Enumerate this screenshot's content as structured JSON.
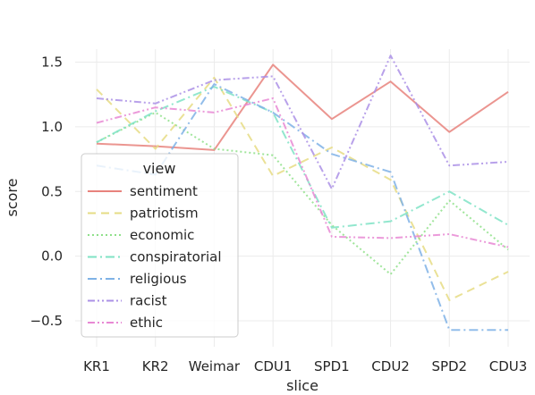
{
  "chart_data": {
    "type": "line",
    "xlabel": "slice",
    "ylabel": "score",
    "categories": [
      "KR1",
      "KR2",
      "Weimar",
      "CDU1",
      "SPD1",
      "CDU2",
      "SPD2",
      "CDU3"
    ],
    "ylim": [
      -0.7,
      1.6
    ],
    "yticks": [
      -0.5,
      0.0,
      0.5,
      1.0,
      1.5
    ],
    "ytick_labels": [
      "−0.5",
      "0.0",
      "0.5",
      "1.0",
      "1.5"
    ],
    "grid": true,
    "legend": {
      "title": "view",
      "placement": "lower-left"
    },
    "series": [
      {
        "name": "sentiment",
        "color": "#e8827d",
        "dash": "solid",
        "values": [
          0.87,
          0.85,
          0.82,
          1.48,
          1.06,
          1.35,
          0.96,
          1.27
        ]
      },
      {
        "name": "patriotism",
        "color": "#e6dc84",
        "dash": "dashed",
        "values": [
          1.29,
          0.83,
          1.38,
          0.62,
          0.84,
          0.59,
          -0.34,
          -0.12
        ]
      },
      {
        "name": "economic",
        "color": "#8fe08a",
        "dash": "dotted",
        "values": [
          0.88,
          1.11,
          0.83,
          0.78,
          0.24,
          -0.14,
          0.43,
          0.05
        ]
      },
      {
        "name": "conspiratorial",
        "color": "#7fe3c5",
        "dash": "dashdot",
        "values": [
          0.88,
          1.12,
          1.31,
          1.11,
          0.22,
          0.27,
          0.5,
          0.24
        ]
      },
      {
        "name": "religious",
        "color": "#7fb2e6",
        "dash": "dashdot",
        "values": [
          0.7,
          0.63,
          1.33,
          1.11,
          0.79,
          0.65,
          -0.57,
          -0.57
        ]
      },
      {
        "name": "racist",
        "color": "#ab91e6",
        "dash": "dashdotdot",
        "values": [
          1.22,
          1.18,
          1.36,
          1.39,
          0.52,
          1.55,
          0.7,
          0.73
        ]
      },
      {
        "name": "ethic",
        "color": "#e888d4",
        "dash": "dashdotdot",
        "values": [
          1.03,
          1.15,
          1.11,
          1.22,
          0.15,
          0.14,
          0.17,
          0.07
        ]
      }
    ]
  }
}
